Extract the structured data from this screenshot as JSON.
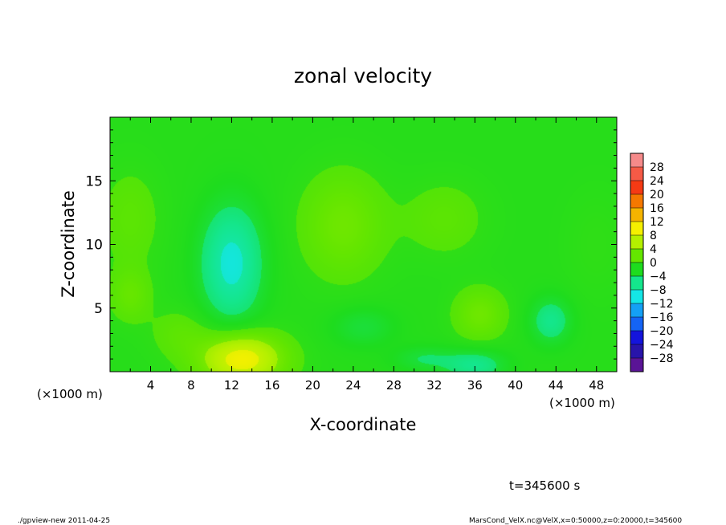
{
  "chart_data": {
    "type": "heatmap",
    "title": "zonal velocity",
    "xlabel": "X-coordinate",
    "ylabel": "Z-coordinate",
    "x_unit_left": "(×1000 m)",
    "x_unit_right": "(×1000 m)",
    "xlim": [
      0,
      50
    ],
    "ylim": [
      0,
      20
    ],
    "xticks": [
      "4",
      "8",
      "12",
      "16",
      "20",
      "24",
      "28",
      "32",
      "36",
      "40",
      "44",
      "48"
    ],
    "yticks": [
      "5",
      "10",
      "15"
    ],
    "colorbar": {
      "labels": [
        "28",
        "24",
        "20",
        "16",
        "12",
        "8",
        "4",
        "0",
        "−4",
        "−8",
        "−12",
        "−16",
        "−20",
        "−24",
        "−28"
      ],
      "colors": [
        "#f58a8a",
        "#f55a46",
        "#f53a14",
        "#f57800",
        "#f5b400",
        "#f5f000",
        "#b4f000",
        "#64e600",
        "#1edc1e",
        "#14e68c",
        "#14e6e6",
        "#14a0f5",
        "#1464f5",
        "#1414dc",
        "#2814aa",
        "#5a1496"
      ]
    },
    "field": {
      "base_value": -1.0,
      "features": [
        {
          "x": 13,
          "z": 1.0,
          "rx": 4.0,
          "rz": 2.0,
          "value": 11
        },
        {
          "x": 23,
          "z": 11.5,
          "rx": 4.0,
          "rz": 4.0,
          "value": 4
        },
        {
          "x": 12,
          "z": 8.5,
          "rx": 3.0,
          "rz": 4.5,
          "value": -8
        },
        {
          "x": 36.5,
          "z": 4.5,
          "rx": 2.5,
          "rz": 2.0,
          "value": 4
        },
        {
          "x": 43.5,
          "z": 4.0,
          "rx": 2.0,
          "rz": 1.8,
          "value": -5
        },
        {
          "x": 36,
          "z": 0.5,
          "rx": 3.0,
          "rz": 1.2,
          "value": -5
        },
        {
          "x": 25,
          "z": 3.5,
          "rx": 3.0,
          "rz": 1.5,
          "value": -3
        },
        {
          "x": 2,
          "z": 12,
          "rx": 3.0,
          "rz": 4.0,
          "value": 2
        },
        {
          "x": 2,
          "z": 6,
          "rx": 2.0,
          "rz": 2.0,
          "value": 3
        },
        {
          "x": 7,
          "z": 3,
          "rx": 3.0,
          "rz": 2.0,
          "value": 2
        },
        {
          "x": 31,
          "z": 1,
          "rx": 3.0,
          "rz": 1.0,
          "value": -3
        },
        {
          "x": 48,
          "z": 10,
          "rx": 3.0,
          "rz": 4.0,
          "value": 1
        },
        {
          "x": 33,
          "z": 12,
          "rx": 4.0,
          "rz": 3.0,
          "value": 2
        }
      ]
    },
    "time_label": "t=345600 s"
  },
  "footer": {
    "left": "./gpview-new  2011-04-25",
    "right": "MarsCond_VelX.nc@VelX,x=0:50000,z=0:20000,t=345600"
  }
}
